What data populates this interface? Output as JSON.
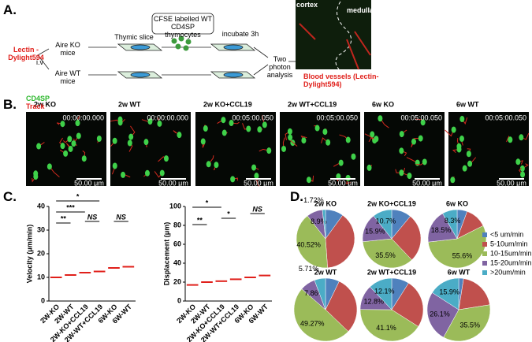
{
  "panel_a": {
    "label": "A.",
    "lectin": "Lectin -Dylight594",
    "iv": "i.v",
    "ko_mice": "Aire KO mice",
    "wt_mice": "Aire WT mice",
    "thymic_slice": "Thymic slice",
    "cfse": "CFSE labelled WT CD4SP thymocytes",
    "incubate": "incubate 3h",
    "two_photon": "Two photon analysis",
    "cortex": "cortex",
    "medulla": "medulla",
    "vessels": "Blood vessels (Lectin-Dylight594)"
  },
  "panel_b": {
    "label": "B.",
    "legend_green": "CD4SP",
    "legend_red": "Track",
    "frames": [
      {
        "title": "2w KO",
        "time": "00:00:00.000",
        "scale": "50.00 μm"
      },
      {
        "title": "2w  WT",
        "time": "00:00:00.000",
        "scale": "50.00 μm"
      },
      {
        "title": "2w KO+CCL19",
        "time": "00:05:00.050",
        "scale": "50.00 μm"
      },
      {
        "title": "2w WT+CCL19",
        "time": "00:05:00.050",
        "scale": "50.00 μm"
      },
      {
        "title": "6w  KO",
        "time": "00:05:00.050",
        "scale": "50.00 μm"
      },
      {
        "title": "6w  WT",
        "time": "00:05:00.050",
        "scale": "50.00 μm"
      }
    ]
  },
  "panel_c": {
    "label": "C."
  },
  "panel_d": {
    "label": "D."
  },
  "chart_data": [
    {
      "type": "strip",
      "ylabel": "Velocity (μm/min)",
      "categories": [
        "2W-KO",
        "2W-WT",
        "2W-KO+CCL19",
        "2W-WT+CCL19",
        "6W-KO",
        "6W-WT"
      ],
      "values": [
        10,
        11,
        12,
        12.5,
        14,
        14.5
      ],
      "color": "#e0201b",
      "ylim": [
        0,
        40
      ],
      "yticks": [
        0,
        10,
        20,
        30,
        40
      ],
      "annotations": [
        "**",
        "***",
        "*",
        "NS",
        "NS"
      ]
    },
    {
      "type": "strip",
      "ylabel": "Displacement (μm)",
      "categories": [
        "2W-KO",
        "2W-WT",
        "2W-KO+CCL19",
        "2W-WT+CCL19",
        "6W-KO",
        "6W-WT"
      ],
      "values": [
        17,
        20,
        21,
        23,
        25,
        27
      ],
      "color": "#e0201b",
      "ylim": [
        0,
        100
      ],
      "yticks": [
        0,
        20,
        40,
        60,
        80,
        100
      ],
      "annotations": [
        "*",
        "**",
        "*",
        "NS"
      ]
    },
    {
      "type": "pie",
      "categories": [
        "<5 um/min",
        "5-10um/min",
        "10-15um/min",
        "15-20um/min",
        ">20um/min"
      ],
      "colors": [
        "#4f81bd",
        "#c0504d",
        "#9bbb59",
        "#8064a2",
        "#4bacc6"
      ],
      "pies": [
        {
          "title": "2w KO",
          "values": [
            10,
            38.86,
            40.52,
            8.9,
            1.72
          ],
          "value_labels": [
            null,
            null,
            "40.52%",
            "8.9%",
            "1.72%"
          ]
        },
        {
          "title": "2w KO+CCL19",
          "values": [
            11,
            26.9,
            35.5,
            15.9,
            10.7
          ],
          "value_labels": [
            null,
            null,
            "35.5%",
            "15.9%",
            "10.7%"
          ]
        },
        {
          "title": "6w  KO",
          "values": [
            5.6,
            12,
            55.6,
            18.5,
            8.3
          ],
          "value_labels": [
            null,
            null,
            "55.6%",
            "18.5%",
            "8.3%"
          ]
        },
        {
          "title": "2w  WT",
          "values": [
            7.16,
            30,
            49.27,
            7.86,
            5.71
          ],
          "value_labels": [
            null,
            null,
            "49.27%",
            "7.86%",
            "5.71%"
          ]
        },
        {
          "title": "2w WT+CCL19",
          "values": [
            9,
            25,
            41.1,
            12.8,
            12.1
          ],
          "value_labels": [
            null,
            null,
            "41.1%",
            "12.8%",
            "12.1%"
          ]
        },
        {
          "title": "6w  WT",
          "values": [
            2.5,
            20,
            35.5,
            26.1,
            15.9
          ],
          "value_labels": [
            null,
            null,
            "35.5%",
            "26.1%",
            "15.9%"
          ]
        }
      ]
    }
  ]
}
